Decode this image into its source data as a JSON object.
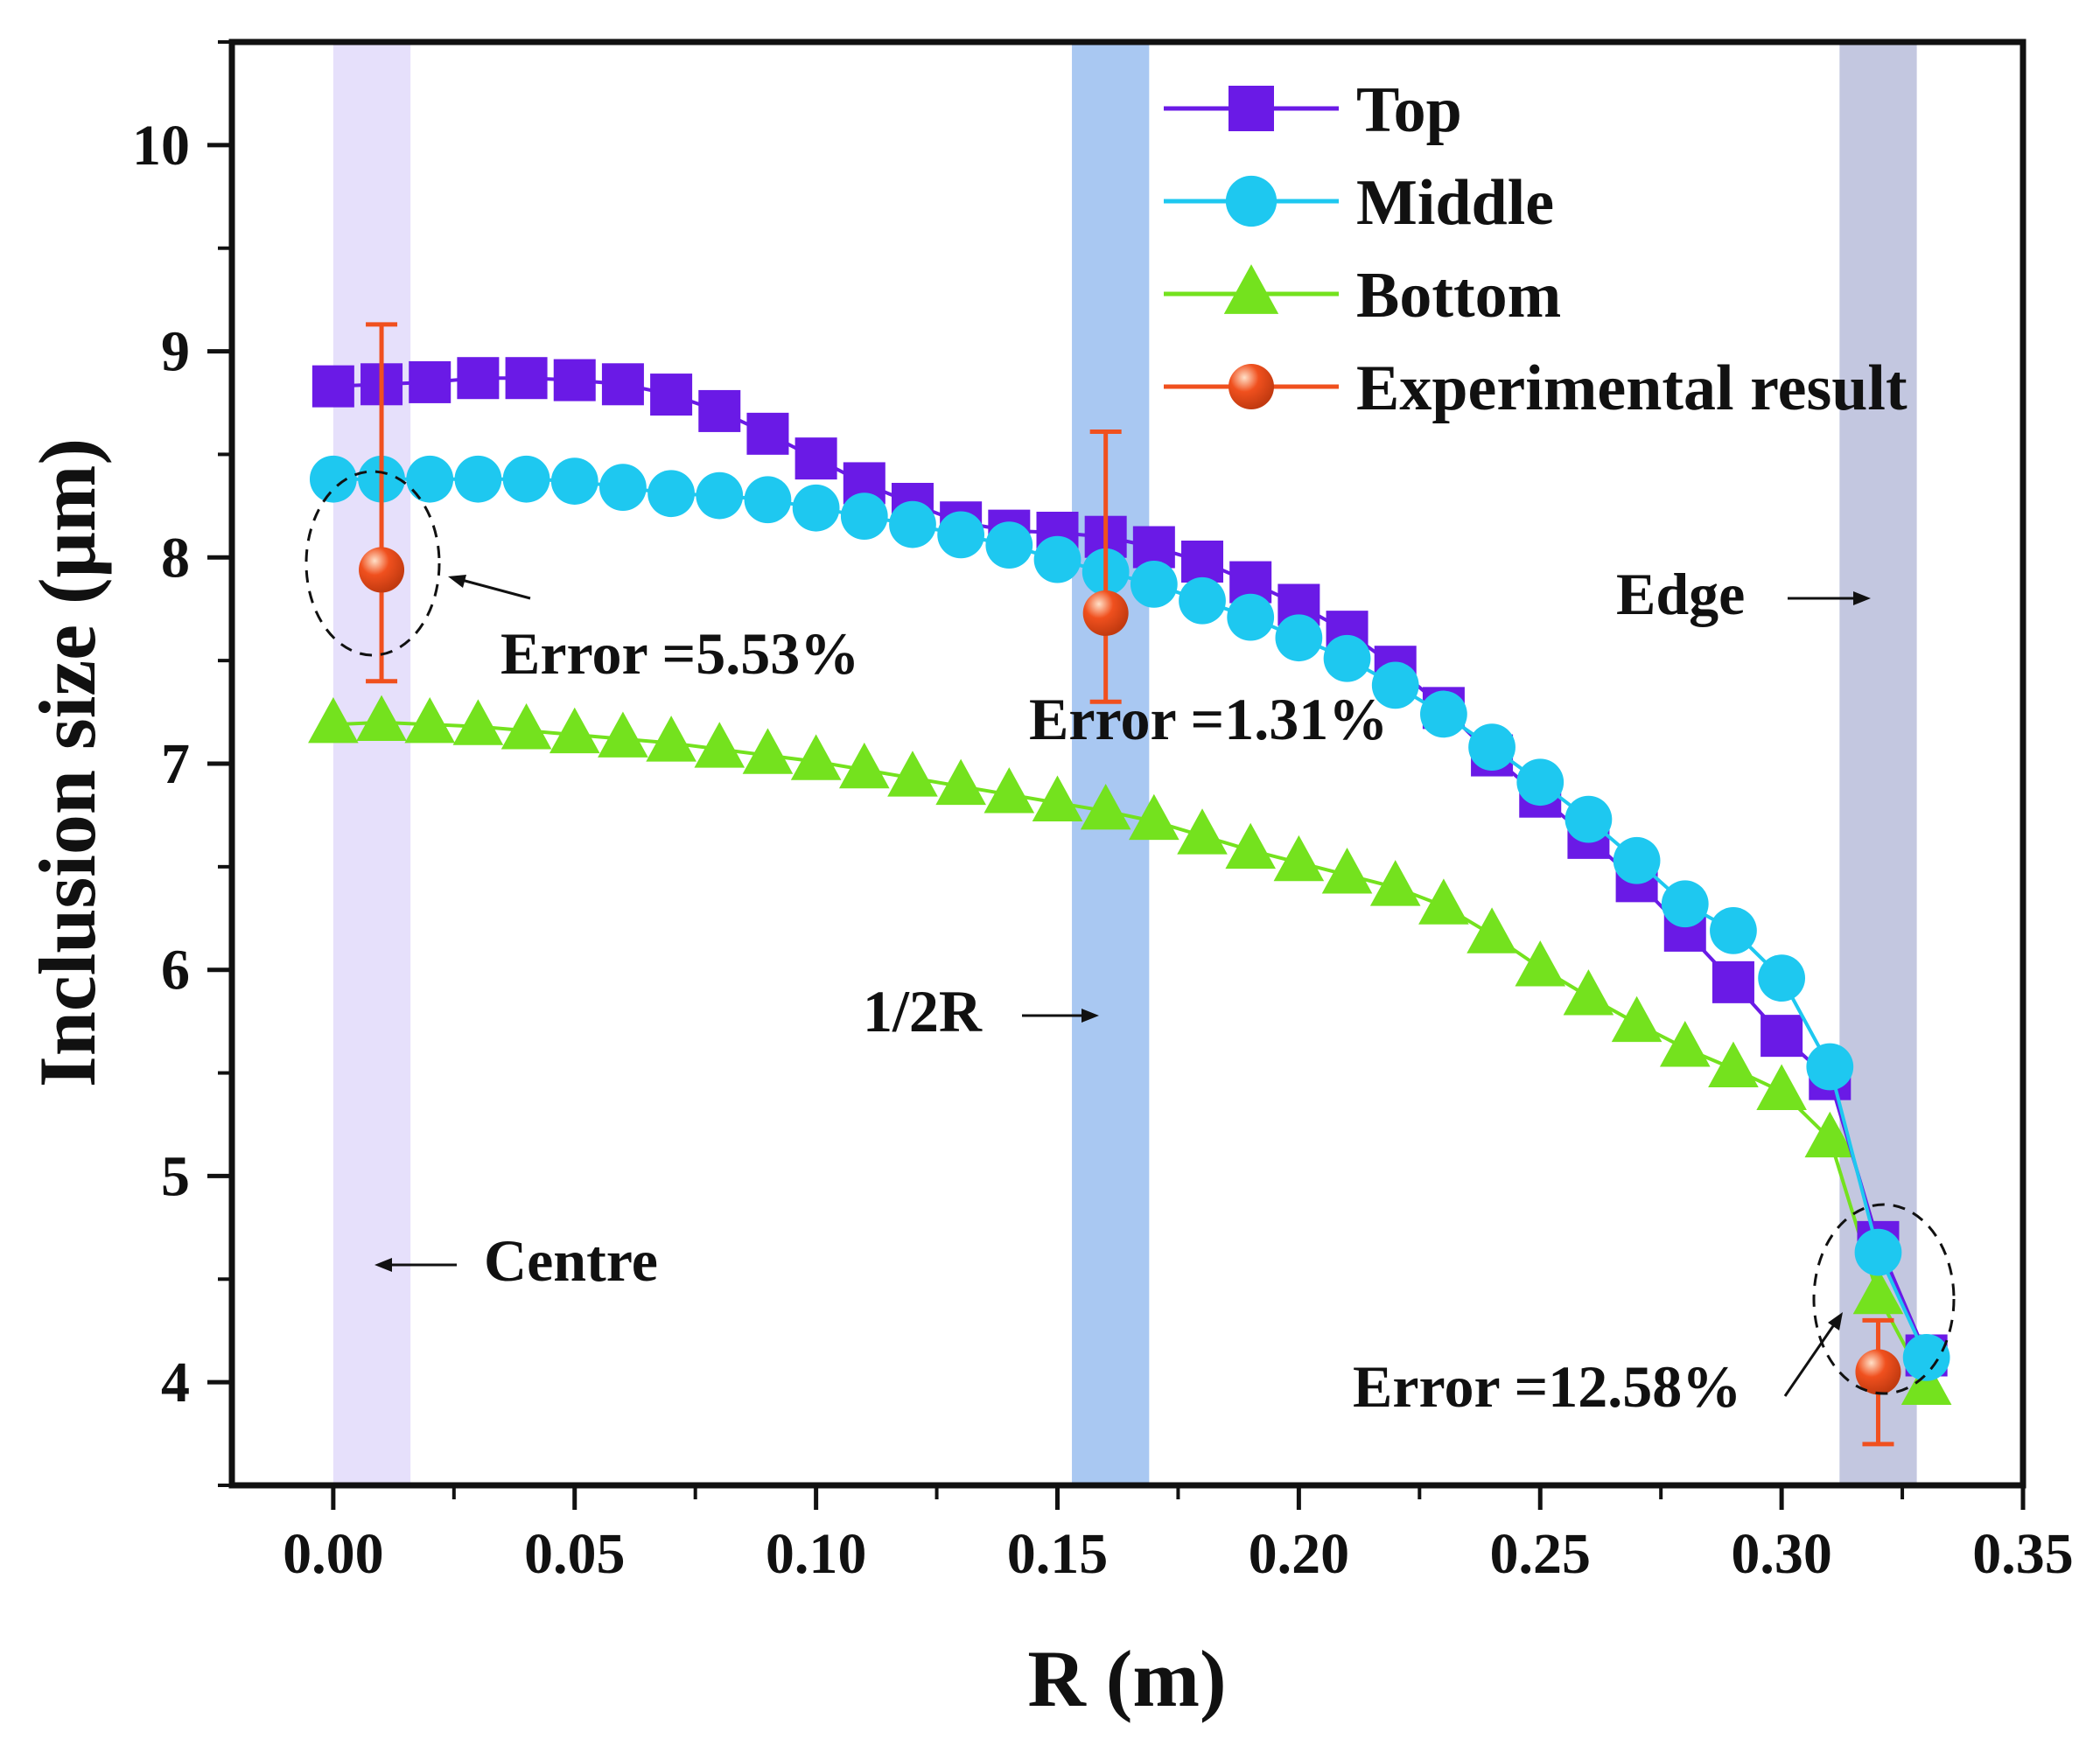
{
  "chart_data": {
    "type": "line",
    "xlabel": "R (m)",
    "ylabel": "Inclusion size (μm)",
    "xlim": [
      -0.021,
      0.35
    ],
    "ylim": [
      3.5,
      10.5
    ],
    "xticks": [
      0.0,
      0.05,
      0.1,
      0.15,
      0.2,
      0.25,
      0.3,
      0.35
    ],
    "xtick_labels": [
      "0.00",
      "0.05",
      "0.10",
      "0.15",
      "0.20",
      "0.25",
      "0.30",
      "0.35"
    ],
    "yticks": [
      4,
      5,
      6,
      7,
      8,
      9,
      10
    ],
    "ytick_labels": [
      "4",
      "5",
      "6",
      "7",
      "8",
      "9",
      "10"
    ],
    "legend_position": "top-right",
    "bands": [
      {
        "name": "centre-band",
        "x0": 0.0,
        "x1": 0.016,
        "color": "#e6e0fb"
      },
      {
        "name": "half-r-band",
        "x0": 0.153,
        "x1": 0.169,
        "color": "#a9c8f2"
      },
      {
        "name": "edge-band",
        "x0": 0.312,
        "x1": 0.328,
        "color": "#c3c7e0"
      }
    ],
    "x": [
      0.0,
      0.01,
      0.02,
      0.03,
      0.04,
      0.05,
      0.06,
      0.07,
      0.08,
      0.09,
      0.1,
      0.11,
      0.12,
      0.13,
      0.14,
      0.15,
      0.16,
      0.17,
      0.18,
      0.19,
      0.2,
      0.21,
      0.22,
      0.23,
      0.24,
      0.25,
      0.26,
      0.27,
      0.28,
      0.29,
      0.3,
      0.31,
      0.32,
      0.33
    ],
    "series": [
      {
        "name": "Top",
        "marker": "square",
        "color": "#6a1ae6",
        "values": [
          8.83,
          8.84,
          8.85,
          8.87,
          8.87,
          8.86,
          8.84,
          8.79,
          8.71,
          8.6,
          8.48,
          8.36,
          8.26,
          8.17,
          8.13,
          8.12,
          8.1,
          8.05,
          7.98,
          7.88,
          7.77,
          7.64,
          7.47,
          7.27,
          7.04,
          6.84,
          6.64,
          6.43,
          6.19,
          5.94,
          5.68,
          5.47,
          4.68,
          4.13
        ]
      },
      {
        "name": "Middle",
        "marker": "circle",
        "color": "#1ec8f0",
        "values": [
          8.38,
          8.38,
          8.38,
          8.38,
          8.38,
          8.37,
          8.34,
          8.31,
          8.3,
          8.28,
          8.24,
          8.2,
          8.16,
          8.11,
          8.06,
          7.99,
          7.93,
          7.87,
          7.79,
          7.71,
          7.61,
          7.51,
          7.38,
          7.24,
          7.08,
          6.91,
          6.73,
          6.53,
          6.32,
          6.19,
          5.96,
          5.53,
          4.63,
          4.12
        ]
      },
      {
        "name": "Bottom",
        "marker": "triangle",
        "color": "#74e21e",
        "values": [
          7.19,
          7.2,
          7.19,
          7.18,
          7.16,
          7.14,
          7.12,
          7.1,
          7.07,
          7.04,
          7.01,
          6.97,
          6.93,
          6.89,
          6.85,
          6.81,
          6.77,
          6.72,
          6.65,
          6.58,
          6.52,
          6.46,
          6.4,
          6.31,
          6.17,
          6.01,
          5.87,
          5.74,
          5.62,
          5.52,
          5.41,
          5.18,
          4.42,
          3.98
        ]
      }
    ],
    "experimental": {
      "name": "Experimental result",
      "color": "#f0501e",
      "points": [
        {
          "x": 0.01,
          "y": 7.94,
          "err_low": 7.4,
          "err_high": 9.13
        },
        {
          "x": 0.16,
          "y": 7.73,
          "err_low": 7.3,
          "err_high": 8.61
        },
        {
          "x": 0.32,
          "y": 4.05,
          "err_low": 3.7,
          "err_high": 4.3
        }
      ]
    },
    "annotations": [
      {
        "text": "Centre"
      },
      {
        "text": "1/2R"
      },
      {
        "text": "Edge"
      },
      {
        "text": "Error =5.53%"
      },
      {
        "text": "Error =1.31%"
      },
      {
        "text": "Error =12.58%"
      }
    ]
  }
}
